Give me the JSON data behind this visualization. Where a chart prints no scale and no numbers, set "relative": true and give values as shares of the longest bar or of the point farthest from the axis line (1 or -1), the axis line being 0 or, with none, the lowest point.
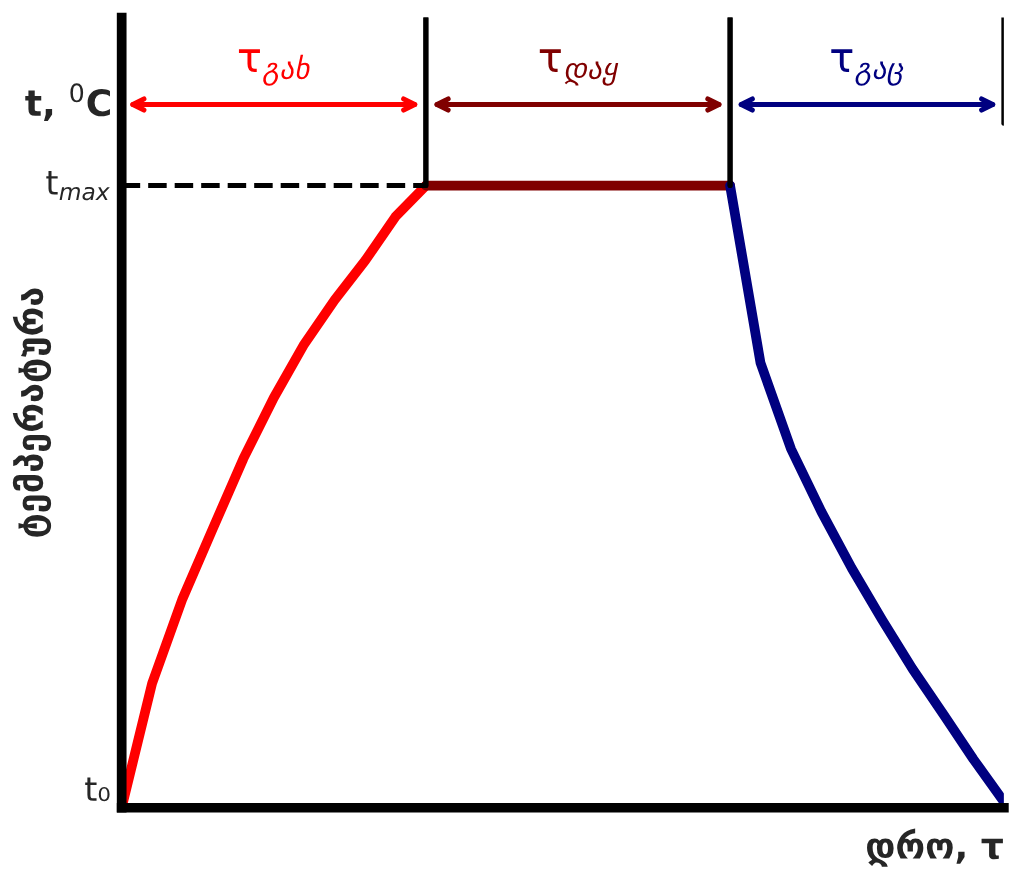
{
  "chart_data": {
    "type": "line",
    "ylabel": "ტემპერატურა",
    "xlabel": "დრო, τ",
    "annotations": [
      "t, $^{0}$C"
    ],
    "categories": [
      null,
      null,
      null,
      null,
      null,
      null,
      null,
      null,
      null,
      null,
      null,
      null,
      null,
      null,
      null,
      null,
      null,
      null,
      null,
      null,
      null,
      null,
      null,
      null,
      null,
      null,
      null,
      null,
      null,
      null
    ],
    "relative": true,
    "legend": false,
    "grid": false,
    "marker": "none",
    "line_style": "solid",
    "series": [
      {
        "name": "τ$_{გახ}$",
        "color": "#ff0000",
        "values": [
          0,
          0.2,
          0.336,
          0.449,
          0.561,
          0.659,
          0.745,
          0.816,
          0.879,
          0.95,
          1,
          null,
          null,
          null,
          null,
          null,
          null,
          null,
          null,
          null,
          null,
          null,
          null,
          null,
          null,
          null,
          null,
          null,
          null,
          null
        ]
      },
      {
        "name": "τ$_{დაყ}$",
        "color": "#800000",
        "values": [
          null,
          null,
          null,
          null,
          null,
          null,
          null,
          null,
          null,
          null,
          1,
          1,
          1,
          1,
          1,
          1,
          1,
          1,
          1,
          1,
          1,
          null,
          null,
          null,
          null,
          null,
          null,
          null,
          null,
          null
        ]
      },
      {
        "name": "τ$_{გაც}$",
        "color": "#000080",
        "values": [
          null,
          null,
          null,
          null,
          null,
          null,
          null,
          null,
          null,
          null,
          null,
          null,
          null,
          null,
          null,
          null,
          null,
          null,
          null,
          null,
          1,
          0.715,
          0.577,
          0.476,
          0.385,
          0.302,
          0.223,
          0.151,
          0.078,
          0.01
        ]
      }
    ],
    "ref_lines": [
      {
        "axis": "y",
        "value": 0,
        "label": "t₀",
        "color": "#000000",
        "line_style": "solid"
      },
      {
        "axis": "y",
        "value": 1,
        "label": "t$_{max}$",
        "color": "#000000",
        "line_style": "dashed"
      }
    ]
  }
}
